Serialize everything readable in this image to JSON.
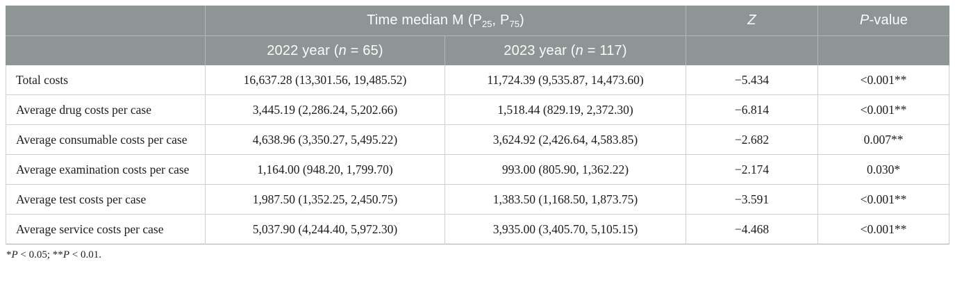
{
  "table": {
    "header": {
      "group_title": "Time median M (P<sub>25</sub>, P<sub>75</sub>)",
      "col_2022": "2022 year (<i>n</i> = 65)",
      "col_2023": "2023 year (<i>n</i> = 117)",
      "col_z": "<i>Z</i>",
      "col_p": "<i>P</i>-value"
    },
    "rows": [
      {
        "label": "Total costs",
        "y2022": "16,637.28 (13,301.56, 19,485.52)",
        "y2023": "11,724.39 (9,535.87, 14,473.60)",
        "z": "−5.434",
        "p": "<0.001**"
      },
      {
        "label": "Average drug costs per case",
        "y2022": "3,445.19 (2,286.24, 5,202.66)",
        "y2023": "1,518.44 (829.19, 2,372.30)",
        "z": "−6.814",
        "p": "<0.001**"
      },
      {
        "label": "Average consumable costs per case",
        "y2022": "4,638.96 (3,350.27, 5,495.22)",
        "y2023": "3,624.92 (2,426.64, 4,583.85)",
        "z": "−2.682",
        "p": "0.007**"
      },
      {
        "label": "Average examination costs per case",
        "y2022": "1,164.00 (948.20, 1,799.70)",
        "y2023": "993.00 (805.90, 1,362.22)",
        "z": "−2.174",
        "p": "0.030*"
      },
      {
        "label": "Average test costs per case",
        "y2022": "1,987.50 (1,352.25, 2,450.75)",
        "y2023": "1,383.50 (1,168.50, 1,873.75)",
        "z": "−3.591",
        "p": "<0.001**"
      },
      {
        "label": "Average service costs per case",
        "y2022": "5,037.90 (4,244.40, 5,972.30)",
        "y2023": "3,935.00 (3,405.70, 5,105.15)",
        "z": "−4.468",
        "p": "<0.001**"
      }
    ],
    "footnote": "*<i>P</i> &lt; 0.05; **<i>P</i> &lt; 0.01."
  },
  "colors": {
    "header_bg": "#8d9595",
    "header_text": "#fbfcfc",
    "header_divider": "#b2b8b8",
    "body_divider": "#cfcfcf",
    "body_text": "#1c1c1c"
  }
}
